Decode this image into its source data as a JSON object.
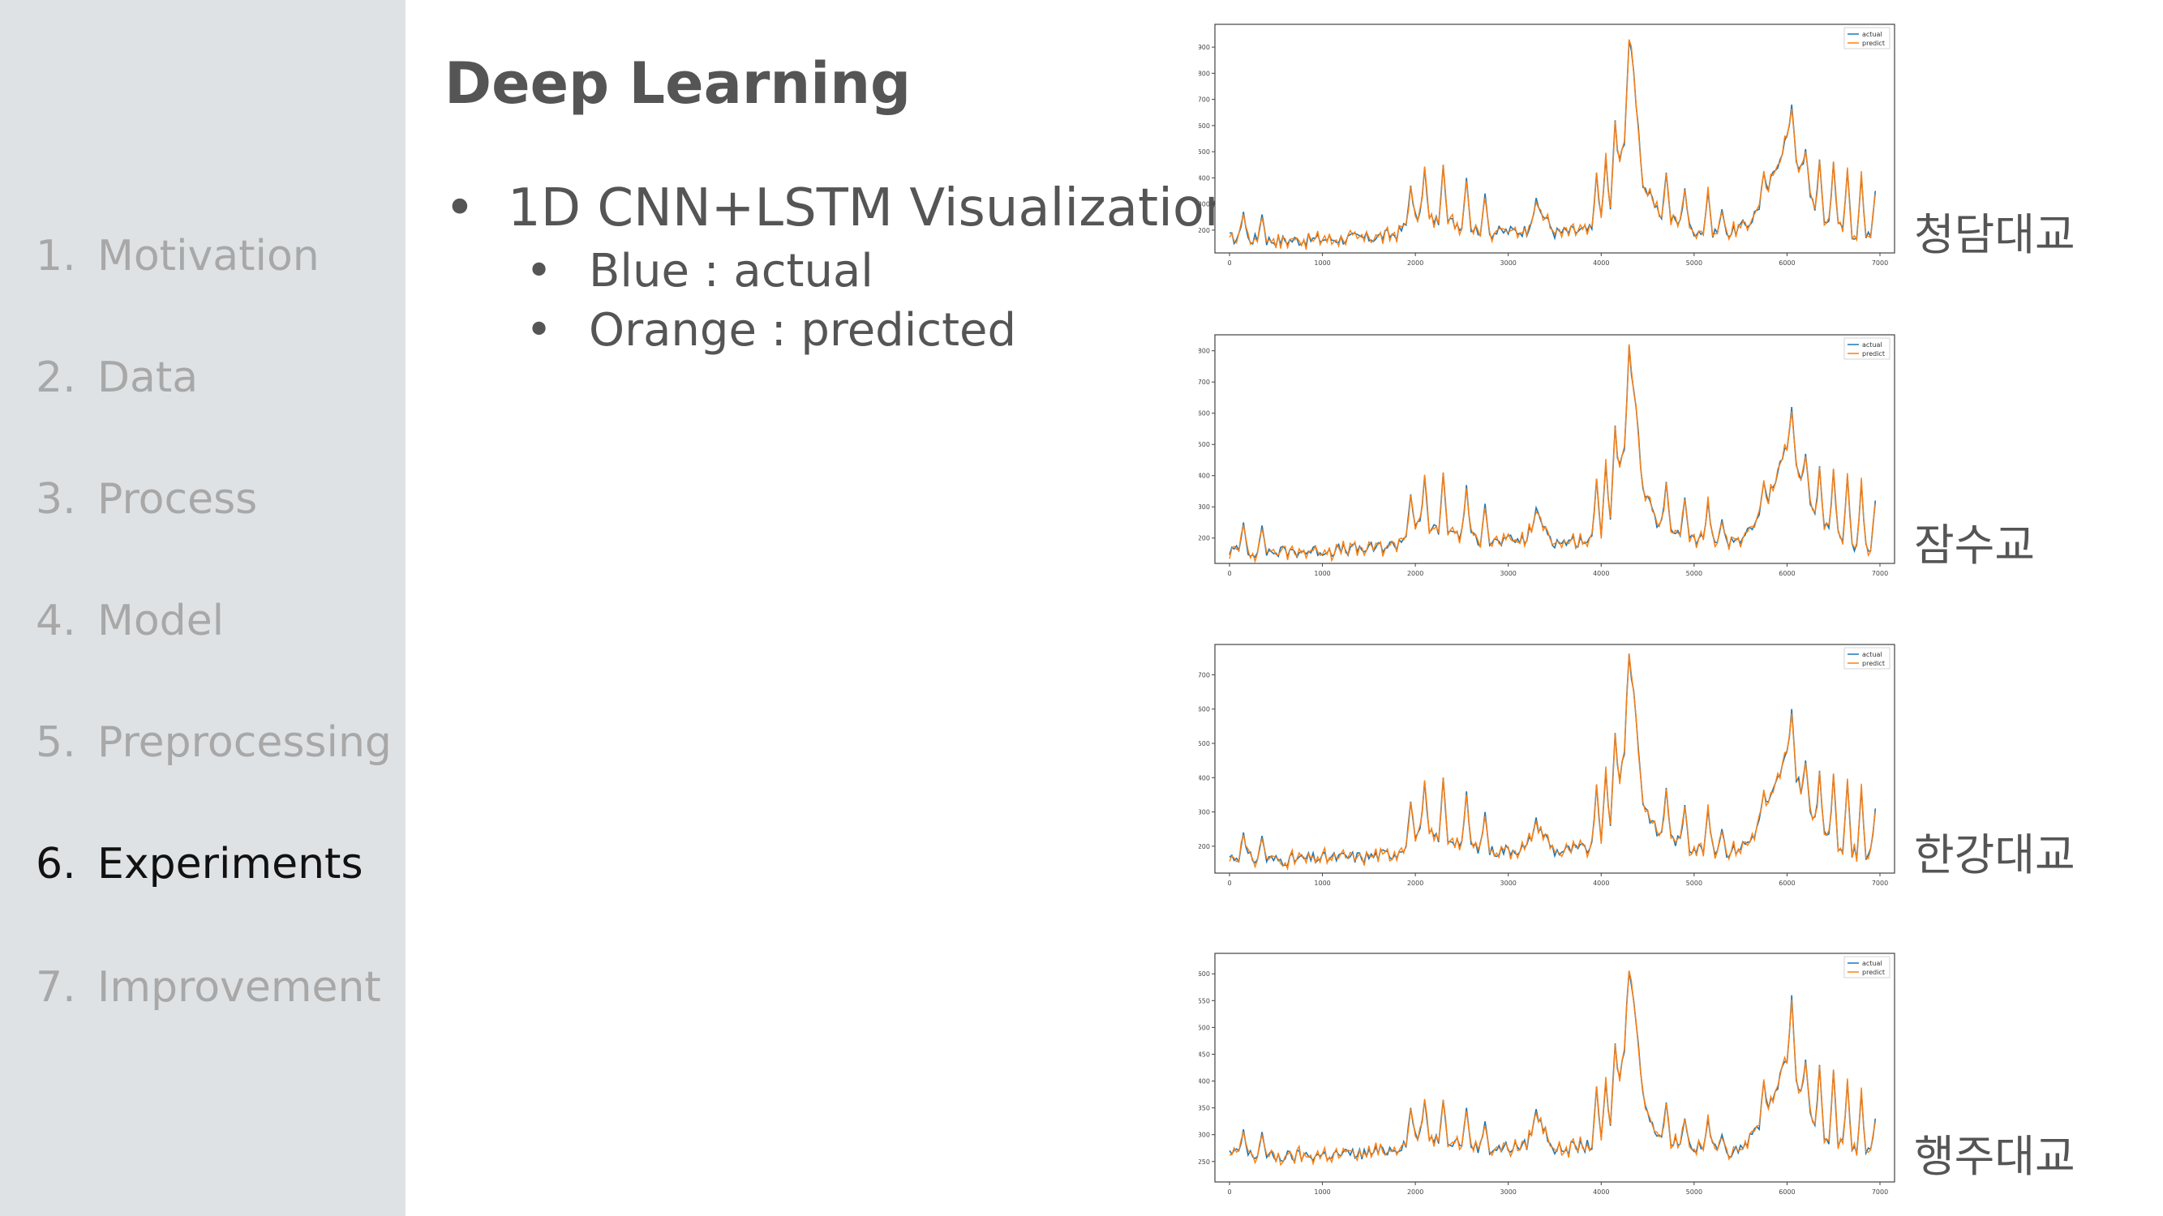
{
  "nav": [
    {
      "num": "1.",
      "label": "Motivation",
      "active": false
    },
    {
      "num": "2.",
      "label": "Data",
      "active": false
    },
    {
      "num": "3.",
      "label": "Process",
      "active": false
    },
    {
      "num": "4.",
      "label": "Model",
      "active": false
    },
    {
      "num": "5.",
      "label": "Preprocessing",
      "active": false
    },
    {
      "num": "6.",
      "label": "Experiments",
      "active": true
    },
    {
      "num": "7.",
      "label": "Improvement",
      "active": false
    }
  ],
  "title": "Deep Learning",
  "bullets": {
    "main": "1D CNN+LSTM Visualization",
    "sub": [
      "Blue : actual",
      "Orange : predicted"
    ]
  },
  "colors": {
    "actual": "#1f77b4",
    "predict": "#ff7f0e",
    "active_nav": "#111111",
    "inactive_nav": "#a8a8a8"
  },
  "chart_data": [
    {
      "type": "line",
      "bridge": "청담대교",
      "legend": [
        "actual",
        "predict"
      ],
      "xticks": [
        0,
        1000,
        2000,
        3000,
        4000,
        5000,
        6000,
        7000
      ],
      "xlim": [
        0,
        7000
      ],
      "yticks": [
        200,
        300,
        400,
        500,
        600,
        700,
        800,
        900
      ],
      "ylim": [
        150,
        950
      ],
      "keypoints": [
        [
          0,
          170
        ],
        [
          500,
          160
        ],
        [
          1000,
          165
        ],
        [
          1500,
          170
        ],
        [
          1800,
          185
        ],
        [
          2000,
          250
        ],
        [
          2400,
          230
        ],
        [
          2800,
          190
        ],
        [
          3200,
          200
        ],
        [
          3300,
          300
        ],
        [
          3500,
          190
        ],
        [
          3900,
          200
        ],
        [
          4100,
          270
        ],
        [
          4250,
          550
        ],
        [
          4300,
          930
        ],
        [
          4350,
          800
        ],
        [
          4450,
          380
        ],
        [
          4600,
          270
        ],
        [
          5000,
          200
        ],
        [
          5400,
          190
        ],
        [
          5600,
          230
        ],
        [
          5800,
          360
        ],
        [
          6000,
          560
        ],
        [
          6150,
          430
        ],
        [
          6350,
          250
        ],
        [
          6600,
          210
        ],
        [
          6800,
          170
        ],
        [
          7000,
          190
        ]
      ],
      "spikes": [
        [
          150,
          270
        ],
        [
          350,
          260
        ],
        [
          1950,
          370
        ],
        [
          2100,
          440
        ],
        [
          2300,
          450
        ],
        [
          2550,
          400
        ],
        [
          2750,
          340
        ],
        [
          3950,
          420
        ],
        [
          4050,
          480
        ],
        [
          4150,
          620
        ],
        [
          4700,
          420
        ],
        [
          4900,
          360
        ],
        [
          5150,
          350
        ],
        [
          5300,
          280
        ],
        [
          5750,
          420
        ],
        [
          6050,
          680
        ],
        [
          6200,
          510
        ],
        [
          6350,
          470
        ],
        [
          6500,
          460
        ],
        [
          6650,
          430
        ],
        [
          6800,
          410
        ],
        [
          6950,
          350
        ]
      ]
    },
    {
      "type": "line",
      "bridge": "잠수교",
      "legend": [
        "actual",
        "predict"
      ],
      "xticks": [
        0,
        1000,
        2000,
        3000,
        4000,
        5000,
        6000,
        7000
      ],
      "xlim": [
        0,
        7000
      ],
      "yticks": [
        200,
        300,
        400,
        500,
        600,
        700,
        800
      ],
      "ylim": [
        150,
        820
      ],
      "keypoints": [
        [
          0,
          160
        ],
        [
          500,
          155
        ],
        [
          1000,
          160
        ],
        [
          1500,
          165
        ],
        [
          1800,
          180
        ],
        [
          2000,
          240
        ],
        [
          2400,
          220
        ],
        [
          2800,
          185
        ],
        [
          3200,
          195
        ],
        [
          3300,
          280
        ],
        [
          3500,
          185
        ],
        [
          3900,
          195
        ],
        [
          4100,
          250
        ],
        [
          4250,
          500
        ],
        [
          4300,
          800
        ],
        [
          4350,
          690
        ],
        [
          4450,
          350
        ],
        [
          4600,
          250
        ],
        [
          5000,
          195
        ],
        [
          5400,
          185
        ],
        [
          5600,
          220
        ],
        [
          5800,
          330
        ],
        [
          6000,
          500
        ],
        [
          6150,
          390
        ],
        [
          6350,
          240
        ],
        [
          6600,
          200
        ],
        [
          6800,
          165
        ],
        [
          7000,
          180
        ]
      ],
      "spikes": [
        [
          150,
          250
        ],
        [
          350,
          240
        ],
        [
          1950,
          340
        ],
        [
          2100,
          400
        ],
        [
          2300,
          410
        ],
        [
          2550,
          370
        ],
        [
          2750,
          310
        ],
        [
          3950,
          390
        ],
        [
          4050,
          440
        ],
        [
          4150,
          560
        ],
        [
          4700,
          380
        ],
        [
          4900,
          330
        ],
        [
          5150,
          320
        ],
        [
          5300,
          260
        ],
        [
          5750,
          380
        ],
        [
          6050,
          620
        ],
        [
          6200,
          470
        ],
        [
          6350,
          430
        ],
        [
          6500,
          420
        ],
        [
          6650,
          400
        ],
        [
          6800,
          380
        ],
        [
          6950,
          320
        ]
      ]
    },
    {
      "type": "line",
      "bridge": "한강대교",
      "legend": [
        "actual",
        "predict"
      ],
      "xticks": [
        0,
        1000,
        2000,
        3000,
        4000,
        5000,
        6000,
        7000
      ],
      "xlim": [
        0,
        7000
      ],
      "yticks": [
        200,
        300,
        400,
        500,
        600,
        700
      ],
      "ylim": [
        150,
        760
      ],
      "keypoints": [
        [
          0,
          170
        ],
        [
          500,
          160
        ],
        [
          1000,
          165
        ],
        [
          1500,
          170
        ],
        [
          1800,
          180
        ],
        [
          2000,
          240
        ],
        [
          2400,
          220
        ],
        [
          2800,
          185
        ],
        [
          3200,
          195
        ],
        [
          3300,
          270
        ],
        [
          3500,
          185
        ],
        [
          3900,
          195
        ],
        [
          4100,
          250
        ],
        [
          4250,
          480
        ],
        [
          4300,
          760
        ],
        [
          4350,
          650
        ],
        [
          4450,
          330
        ],
        [
          4600,
          240
        ],
        [
          5000,
          195
        ],
        [
          5400,
          185
        ],
        [
          5600,
          215
        ],
        [
          5800,
          320
        ],
        [
          6000,
          470
        ],
        [
          6150,
          370
        ],
        [
          6350,
          235
        ],
        [
          6600,
          200
        ],
        [
          6800,
          170
        ],
        [
          7000,
          180
        ]
      ],
      "spikes": [
        [
          150,
          240
        ],
        [
          350,
          230
        ],
        [
          1950,
          330
        ],
        [
          2100,
          390
        ],
        [
          2300,
          400
        ],
        [
          2550,
          360
        ],
        [
          2750,
          300
        ],
        [
          3950,
          380
        ],
        [
          4050,
          420
        ],
        [
          4150,
          530
        ],
        [
          4700,
          370
        ],
        [
          4900,
          320
        ],
        [
          5150,
          310
        ],
        [
          5300,
          250
        ],
        [
          5750,
          360
        ],
        [
          6050,
          600
        ],
        [
          6200,
          450
        ],
        [
          6350,
          420
        ],
        [
          6500,
          410
        ],
        [
          6650,
          390
        ],
        [
          6800,
          370
        ],
        [
          6950,
          310
        ]
      ]
    },
    {
      "type": "line",
      "bridge": "행주대교",
      "legend": [
        "actual",
        "predict"
      ],
      "xticks": [
        0,
        1000,
        2000,
        3000,
        4000,
        5000,
        6000,
        7000
      ],
      "xlim": [
        0,
        7000
      ],
      "yticks": [
        250,
        300,
        350,
        400,
        450,
        500,
        550,
        600
      ],
      "ylim": [
        230,
        620
      ],
      "keypoints": [
        [
          0,
          265
        ],
        [
          500,
          258
        ],
        [
          1000,
          262
        ],
        [
          1500,
          265
        ],
        [
          1800,
          275
        ],
        [
          2000,
          300
        ],
        [
          2400,
          290
        ],
        [
          2800,
          272
        ],
        [
          3200,
          280
        ],
        [
          3300,
          340
        ],
        [
          3500,
          272
        ],
        [
          3900,
          280
        ],
        [
          4100,
          310
        ],
        [
          4250,
          460
        ],
        [
          4300,
          615
        ],
        [
          4350,
          560
        ],
        [
          4450,
          370
        ],
        [
          4600,
          300
        ],
        [
          5000,
          278
        ],
        [
          5400,
          270
        ],
        [
          5600,
          290
        ],
        [
          5800,
          350
        ],
        [
          6000,
          440
        ],
        [
          6150,
          380
        ],
        [
          6350,
          300
        ],
        [
          6600,
          280
        ],
        [
          6800,
          262
        ],
        [
          7000,
          270
        ]
      ],
      "spikes": [
        [
          150,
          310
        ],
        [
          350,
          305
        ],
        [
          1950,
          350
        ],
        [
          2100,
          365
        ],
        [
          2300,
          365
        ],
        [
          2550,
          350
        ],
        [
          2750,
          325
        ],
        [
          3950,
          390
        ],
        [
          4050,
          400
        ],
        [
          4150,
          470
        ],
        [
          4700,
          360
        ],
        [
          4900,
          330
        ],
        [
          5150,
          330
        ],
        [
          5300,
          300
        ],
        [
          5750,
          400
        ],
        [
          6050,
          560
        ],
        [
          6200,
          440
        ],
        [
          6350,
          430
        ],
        [
          6500,
          420
        ],
        [
          6650,
          400
        ],
        [
          6800,
          380
        ],
        [
          6950,
          330
        ]
      ]
    }
  ]
}
